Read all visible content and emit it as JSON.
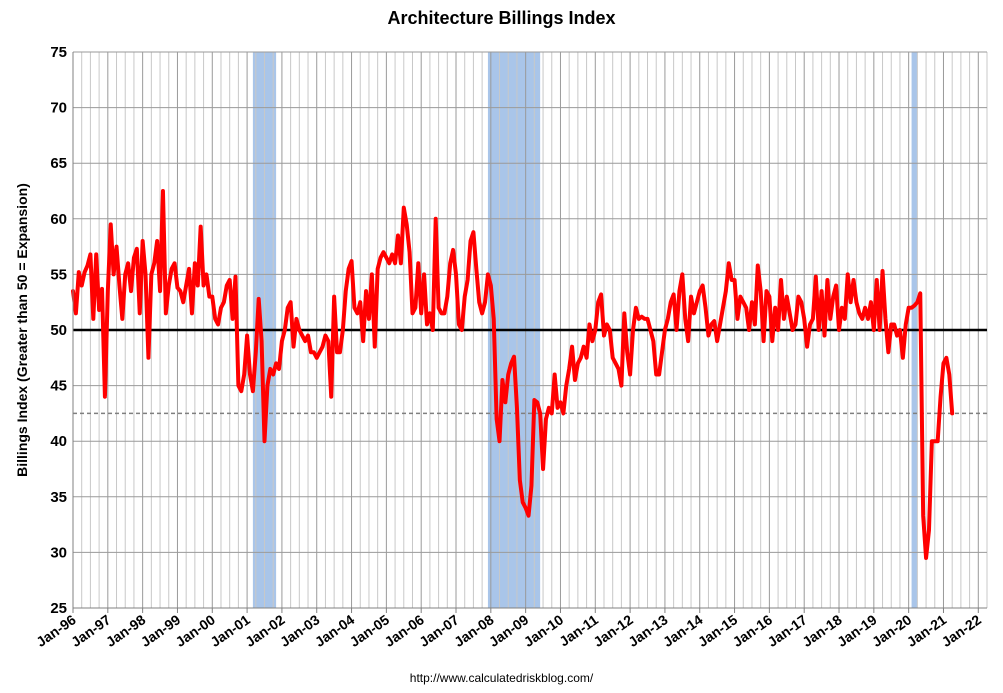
{
  "chart_data": {
    "type": "line",
    "title": "Architecture Billings Index",
    "ylabel": "Billings Index (Greater than 50 = Expansion)",
    "xlabel": "",
    "source": "http://www.calculatedriskblog.com/",
    "ylim": [
      25,
      75
    ],
    "yticks": [
      25,
      30,
      35,
      40,
      45,
      50,
      55,
      60,
      65,
      70,
      75
    ],
    "xlim": [
      1996.0,
      2022.25
    ],
    "x_tick_labels": [
      "Jan-96",
      "Jan-97",
      "Jan-98",
      "Jan-99",
      "Jan-00",
      "Jan-01",
      "Jan-02",
      "Jan-03",
      "Jan-04",
      "Jan-05",
      "Jan-06",
      "Jan-07",
      "Jan-08",
      "Jan-09",
      "Jan-10",
      "Jan-11",
      "Jan-12",
      "Jan-13",
      "Jan-14",
      "Jan-15",
      "Jan-16",
      "Jan-17",
      "Jan-18",
      "Jan-19",
      "Jan-20",
      "Jan-21",
      "Jan-22"
    ],
    "grid": true,
    "reference_lines": [
      {
        "name": "expansion-threshold",
        "value": 50,
        "color": "#000000",
        "style": "solid"
      },
      {
        "name": "latest-level",
        "value": 42.5,
        "color": "#7f7f7f",
        "style": "dashed"
      }
    ],
    "recessions": [
      {
        "start": "Mar-01",
        "end": "Nov-01"
      },
      {
        "start": "Dec-07",
        "end": "Jun-09"
      },
      {
        "start": "Feb-20",
        "end": "Apr-20"
      }
    ],
    "series": [
      {
        "color": "#ff0000",
        "start": "Jan-96",
        "frequency": "monthly",
        "values": [
          53.5,
          51.5,
          55.2,
          54.0,
          55.2,
          55.8,
          56.8,
          51.0,
          56.8,
          51.8,
          53.7,
          44.0,
          53.5,
          59.5,
          55.0,
          57.5,
          54.0,
          51.0,
          55.0,
          56.0,
          53.5,
          56.5,
          57.3,
          51.5,
          58.0,
          55.0,
          47.5,
          55.0,
          56.0,
          58.0,
          53.5,
          62.5,
          51.5,
          54.0,
          55.5,
          56.0,
          53.8,
          53.5,
          52.5,
          54.0,
          55.5,
          51.5,
          56.0,
          54.0,
          59.3,
          54.0,
          55.0,
          53.0,
          53.0,
          51.0,
          50.5,
          52.0,
          52.5,
          54.0,
          54.5,
          51.0,
          54.8,
          45.0,
          44.5,
          46.0,
          49.5,
          46.0,
          44.5,
          48.0,
          52.8,
          49.0,
          40.0,
          45.0,
          46.5,
          46.0,
          47.0,
          46.5,
          49.0,
          50.0,
          52.0,
          52.5,
          48.5,
          51.0,
          50.0,
          49.5,
          49.0,
          49.5,
          48.0,
          48.0,
          47.5,
          48.0,
          48.5,
          49.5,
          49.0,
          44.0,
          53.0,
          48.0,
          48.0,
          50.0,
          53.5,
          55.5,
          56.2,
          52.0,
          51.5,
          52.5,
          49.0,
          53.5,
          51.0,
          55.0,
          48.5,
          55.5,
          56.5,
          57.0,
          56.5,
          56.0,
          56.8,
          56.0,
          58.5,
          56.0,
          61.0,
          59.5,
          57.0,
          51.5,
          52.0,
          56.0,
          51.5,
          55.0,
          50.5,
          51.5,
          50.0,
          60.0,
          52.0,
          51.5,
          51.5,
          53.0,
          56.0,
          57.2,
          55.0,
          50.5,
          50.0,
          53.0,
          54.5,
          58.0,
          58.8,
          55.5,
          52.5,
          51.5,
          52.5,
          55.0,
          54.0,
          51.0,
          42.0,
          40.0,
          45.5,
          43.5,
          46.0,
          47.0,
          47.6,
          43.0,
          36.5,
          34.5,
          34.0,
          33.3,
          36.0,
          43.7,
          43.5,
          42.5,
          37.5,
          42.0,
          43.0,
          42.5,
          46.0,
          43.0,
          43.5,
          42.5,
          45.0,
          46.5,
          48.5,
          45.5,
          47.0,
          47.5,
          48.5,
          47.5,
          50.5,
          49.0,
          50.0,
          52.5,
          53.2,
          49.5,
          50.5,
          50.0,
          47.5,
          47.0,
          46.5,
          45.0,
          51.5,
          48.0,
          46.0,
          50.0,
          52.0,
          51.0,
          51.2,
          51.0,
          51.0,
          50.0,
          49.0,
          46.0,
          46.0,
          48.0,
          50.0,
          51.0,
          52.5,
          53.2,
          50.0,
          53.5,
          55.0,
          51.0,
          49.0,
          53.0,
          51.5,
          52.5,
          53.5,
          54.0,
          52.0,
          49.5,
          50.5,
          50.8,
          49.0,
          50.5,
          52.0,
          53.5,
          56.0,
          54.5,
          54.5,
          51.0,
          53.0,
          52.5,
          52.0,
          50.0,
          52.5,
          50.5,
          55.8,
          53.5,
          49.0,
          53.5,
          53.0,
          49.0,
          52.0,
          50.0,
          54.5,
          51.0,
          53.0,
          51.5,
          50.0,
          50.5,
          53.0,
          52.5,
          51.0,
          48.5,
          50.5,
          51.0,
          54.8,
          50.0,
          53.5,
          49.5,
          54.5,
          51.0,
          53.0,
          54.0,
          50.0,
          52.0,
          51.0,
          55.0,
          52.5,
          54.5,
          52.5,
          51.5,
          51.0,
          52.0,
          51.0,
          52.5,
          50.0,
          54.5,
          50.0,
          55.3,
          51.0,
          48.0,
          50.5,
          50.5,
          49.5,
          50.0,
          47.5,
          50.5,
          52.0,
          52.0,
          52.2,
          52.5,
          53.3,
          33.3,
          29.5,
          32.0,
          40.0,
          40.0,
          40.0,
          44.0,
          47.0,
          47.5,
          46.0,
          42.5
        ]
      }
    ]
  }
}
